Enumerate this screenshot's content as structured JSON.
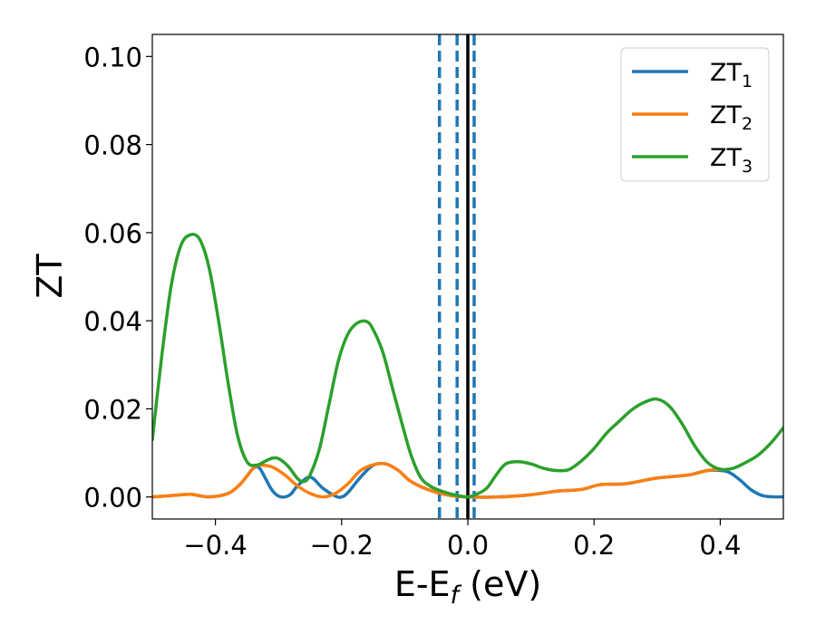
{
  "chart_data": {
    "type": "line",
    "title": "",
    "xlabel": "E-E",
    "xlabel_sub": "f",
    "xlabel_unit": " (eV)",
    "ylabel": "ZT",
    "xlim": [
      -0.5,
      0.5
    ],
    "ylim": [
      -0.005,
      0.105
    ],
    "xticks": [
      -0.4,
      -0.2,
      0.0,
      0.2,
      0.4
    ],
    "xtick_labels": [
      "−0.4",
      "−0.2",
      "0.0",
      "0.2",
      "0.4"
    ],
    "yticks": [
      0.0,
      0.02,
      0.04,
      0.06,
      0.08,
      0.1
    ],
    "ytick_labels": [
      "0.00",
      "0.02",
      "0.04",
      "0.06",
      "0.08",
      "0.10"
    ],
    "grid": false,
    "legend_position": "top-right",
    "vlines": [
      {
        "x": -0.045,
        "style": "dashed",
        "color": "#1f77b4"
      },
      {
        "x": -0.017,
        "style": "dashed",
        "color": "#1f77b4"
      },
      {
        "x": 0.0,
        "style": "solid",
        "color": "#000000"
      },
      {
        "x": 0.01,
        "style": "dashed",
        "color": "#1f77b4"
      }
    ],
    "series": [
      {
        "name": "ZT",
        "name_sub": "1",
        "color": "#1f77b4",
        "points": [
          [
            -0.5,
            0.0
          ],
          [
            -0.47,
            0.0003
          ],
          [
            -0.44,
            0.0006
          ],
          [
            -0.41,
            0.0
          ],
          [
            -0.38,
            0.0008
          ],
          [
            -0.36,
            0.003
          ],
          [
            -0.34,
            0.0065
          ],
          [
            -0.33,
            0.0065
          ],
          [
            -0.32,
            0.004
          ],
          [
            -0.31,
            0.0015
          ],
          [
            -0.3,
            0.0002
          ],
          [
            -0.29,
            0.0
          ],
          [
            -0.28,
            0.0007
          ],
          [
            -0.27,
            0.0025
          ],
          [
            -0.25,
            0.0045
          ],
          [
            -0.23,
            0.002
          ],
          [
            -0.21,
            0.0002
          ],
          [
            -0.2,
            0.0
          ],
          [
            -0.19,
            0.001
          ],
          [
            -0.17,
            0.0045
          ],
          [
            -0.15,
            0.0072
          ],
          [
            -0.13,
            0.0075
          ],
          [
            -0.11,
            0.006
          ],
          [
            -0.09,
            0.0035
          ],
          [
            -0.06,
            0.0015
          ],
          [
            -0.03,
            0.0004
          ],
          [
            0.0,
            0.0
          ],
          [
            0.05,
            0.0
          ],
          [
            0.1,
            0.0005
          ],
          [
            0.14,
            0.0013
          ],
          [
            0.18,
            0.0017
          ],
          [
            0.21,
            0.0028
          ],
          [
            0.25,
            0.003
          ],
          [
            0.3,
            0.0043
          ],
          [
            0.35,
            0.005
          ],
          [
            0.38,
            0.006
          ],
          [
            0.41,
            0.0058
          ],
          [
            0.43,
            0.004
          ],
          [
            0.45,
            0.0015
          ],
          [
            0.47,
            0.0002
          ],
          [
            0.5,
            0.0
          ]
        ]
      },
      {
        "name": "ZT",
        "name_sub": "2",
        "color": "#ff7f0e",
        "points": [
          [
            -0.5,
            0.0
          ],
          [
            -0.47,
            0.0003
          ],
          [
            -0.44,
            0.0006
          ],
          [
            -0.41,
            0.0
          ],
          [
            -0.38,
            0.0008
          ],
          [
            -0.36,
            0.003
          ],
          [
            -0.34,
            0.0065
          ],
          [
            -0.33,
            0.0072
          ],
          [
            -0.31,
            0.0068
          ],
          [
            -0.29,
            0.005
          ],
          [
            -0.27,
            0.0025
          ],
          [
            -0.25,
            0.0008
          ],
          [
            -0.23,
            0.0
          ],
          [
            -0.21,
            0.0008
          ],
          [
            -0.19,
            0.003
          ],
          [
            -0.17,
            0.006
          ],
          [
            -0.15,
            0.0073
          ],
          [
            -0.13,
            0.0075
          ],
          [
            -0.11,
            0.006
          ],
          [
            -0.09,
            0.0035
          ],
          [
            -0.06,
            0.0015
          ],
          [
            -0.03,
            0.0004
          ],
          [
            0.0,
            0.0
          ],
          [
            0.05,
            0.0
          ],
          [
            0.1,
            0.0005
          ],
          [
            0.14,
            0.0013
          ],
          [
            0.18,
            0.0017
          ],
          [
            0.21,
            0.0028
          ],
          [
            0.25,
            0.003
          ],
          [
            0.3,
            0.0043
          ],
          [
            0.35,
            0.005
          ],
          [
            0.38,
            0.006
          ],
          [
            0.4,
            0.0063
          ]
        ]
      },
      {
        "name": "ZT",
        "name_sub": "3",
        "color": "#2ca02c",
        "points": [
          [
            -0.5,
            0.013
          ],
          [
            -0.485,
            0.032
          ],
          [
            -0.47,
            0.048
          ],
          [
            -0.455,
            0.057
          ],
          [
            -0.44,
            0.0595
          ],
          [
            -0.425,
            0.0585
          ],
          [
            -0.41,
            0.052
          ],
          [
            -0.395,
            0.04
          ],
          [
            -0.38,
            0.026
          ],
          [
            -0.365,
            0.014
          ],
          [
            -0.35,
            0.008
          ],
          [
            -0.335,
            0.0072
          ],
          [
            -0.32,
            0.0082
          ],
          [
            -0.31,
            0.0088
          ],
          [
            -0.3,
            0.0087
          ],
          [
            -0.285,
            0.007
          ],
          [
            -0.27,
            0.0042
          ],
          [
            -0.26,
            0.0035
          ],
          [
            -0.25,
            0.005
          ],
          [
            -0.235,
            0.011
          ],
          [
            -0.22,
            0.021
          ],
          [
            -0.205,
            0.031
          ],
          [
            -0.19,
            0.037
          ],
          [
            -0.175,
            0.0395
          ],
          [
            -0.16,
            0.0398
          ],
          [
            -0.15,
            0.038
          ],
          [
            -0.135,
            0.033
          ],
          [
            -0.12,
            0.025
          ],
          [
            -0.105,
            0.017
          ],
          [
            -0.09,
            0.0095
          ],
          [
            -0.075,
            0.0045
          ],
          [
            -0.06,
            0.0025
          ],
          [
            -0.045,
            0.0015
          ],
          [
            -0.03,
            0.0008
          ],
          [
            -0.015,
            0.0003
          ],
          [
            0.0,
            0.0
          ],
          [
            0.015,
            0.0007
          ],
          [
            0.03,
            0.002
          ],
          [
            0.045,
            0.005
          ],
          [
            0.06,
            0.0075
          ],
          [
            0.08,
            0.008
          ],
          [
            0.1,
            0.0075
          ],
          [
            0.12,
            0.0065
          ],
          [
            0.14,
            0.006
          ],
          [
            0.16,
            0.0062
          ],
          [
            0.18,
            0.0082
          ],
          [
            0.2,
            0.011
          ],
          [
            0.22,
            0.0145
          ],
          [
            0.24,
            0.0172
          ],
          [
            0.26,
            0.0198
          ],
          [
            0.28,
            0.0215
          ],
          [
            0.3,
            0.0222
          ],
          [
            0.32,
            0.0205
          ],
          [
            0.34,
            0.0165
          ],
          [
            0.36,
            0.0115
          ],
          [
            0.38,
            0.0078
          ],
          [
            0.4,
            0.0063
          ],
          [
            0.42,
            0.0065
          ],
          [
            0.44,
            0.0078
          ],
          [
            0.46,
            0.0095
          ],
          [
            0.48,
            0.0122
          ],
          [
            0.5,
            0.0157
          ]
        ]
      }
    ]
  }
}
